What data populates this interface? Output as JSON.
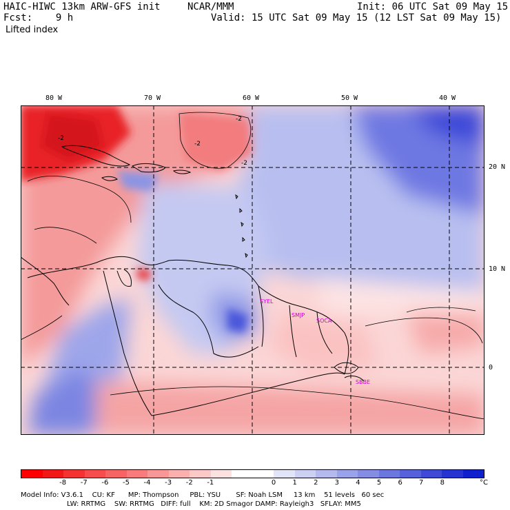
{
  "header": {
    "model": "HAIC-HIWC 13km ARW-GFS init",
    "org": "NCAR/MMM",
    "init": "Init: 06 UTC Sat 09 May 15",
    "fcst": "Fcst:    9 h",
    "valid": "Valid: 15 UTC Sat 09 May 15 (12 LST Sat 09 May 15)",
    "field": "Lifted index"
  },
  "map": {
    "lon_labels": [
      "80 W",
      "70 W",
      "60 W",
      "50 W",
      "40 W"
    ],
    "lat_labels": [
      "20 N",
      "10 N",
      "0"
    ],
    "contour_labels": [
      "-2",
      "-2",
      "-2",
      "-2"
    ],
    "cities": [
      "SYEL",
      "SMJP",
      "SOCA",
      "SBBE"
    ],
    "colors": {
      "neg_strong": "#e8141e",
      "neg_mid": "#f27a7c",
      "neg_light": "#f9c8c8",
      "neutral": "#ffffff",
      "pos_light": "#d8dcf6",
      "pos_mid": "#8f98e6",
      "pos_strong": "#3344dd",
      "city_text": "#cc00cc"
    }
  },
  "colorbar": {
    "ticks": [
      "-8",
      "-7",
      "-6",
      "-5",
      "-4",
      "-3",
      "-2",
      "-1",
      "0",
      "1",
      "2",
      "3",
      "4",
      "5",
      "6",
      "7",
      "8"
    ],
    "unit": "°C",
    "colors": [
      "#ff0000",
      "#f21818",
      "#f53232",
      "#f64c4c",
      "#f76464",
      "#f87c7c",
      "#f99696",
      "#fbb0b0",
      "#fcc8c8",
      "#fde0e0",
      "#ffffff",
      "#ffffff",
      "#e2e4f8",
      "#ccd0f3",
      "#b4baee",
      "#9aa2e9",
      "#848ce4",
      "#6c76df",
      "#5660da",
      "#3e4ad5",
      "#2834d0",
      "#1020cc"
    ]
  },
  "footer": {
    "line1": "Model Info: V3.6.1    CU: KF      MP: Thompson     PBL: YSU       SF: Noah LSM     13 km    51 levels   60 sec",
    "line2": "LW: RRTMG    SW: RRTMG   DIFF: full    KM: 2D Smagor DAMP: Rayleigh3   SFLAY: MM5"
  }
}
